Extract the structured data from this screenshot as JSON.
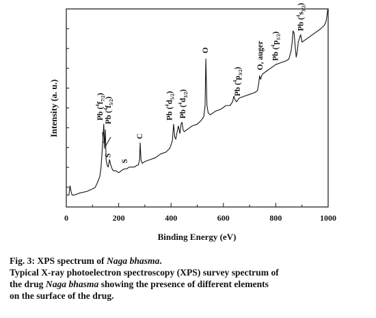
{
  "chart_data": {
    "type": "line",
    "title": "",
    "xlabel": "Binding Energy (eV)",
    "ylabel": "Intensity (a. u.)",
    "xlim": [
      0,
      1000
    ],
    "x_ticks": [
      "0",
      "200",
      "400",
      "600",
      "800",
      "1000"
    ],
    "y_ticks_labeled": false,
    "grid": false,
    "legend": "none",
    "series": [
      {
        "x": [
          2,
          10,
          14,
          18,
          22,
          30,
          50,
          80,
          110,
          120,
          128,
          132,
          136,
          140,
          143,
          146,
          149,
          152,
          156,
          160,
          165,
          170,
          175,
          180,
          190,
          200,
          210,
          220,
          230,
          240,
          250,
          260,
          270,
          275,
          280,
          282,
          285,
          290,
          300,
          320,
          340,
          360,
          380,
          395,
          405,
          410,
          414,
          418,
          422,
          428,
          434,
          438,
          442,
          446,
          450,
          460,
          480,
          500,
          515,
          525,
          530,
          533,
          537,
          542,
          550,
          570,
          590,
          610,
          625,
          635,
          640,
          645,
          650,
          660,
          680,
          700,
          720,
          730,
          735,
          738,
          742,
          746,
          750,
          760,
          780,
          800,
          820,
          840,
          850,
          858,
          862,
          866,
          870,
          874,
          878,
          882,
          886,
          890,
          895,
          900,
          910,
          930,
          950,
          970,
          985,
          992,
          996,
          999
        ],
        "y": [
          0.02,
          0.02,
          0.07,
          0.04,
          0.02,
          0.02,
          0.03,
          0.04,
          0.06,
          0.09,
          0.12,
          0.16,
          0.24,
          0.32,
          0.4,
          0.27,
          0.37,
          0.21,
          0.18,
          0.17,
          0.21,
          0.18,
          0.16,
          0.15,
          0.15,
          0.14,
          0.15,
          0.16,
          0.16,
          0.17,
          0.17,
          0.17,
          0.18,
          0.18,
          0.21,
          0.3,
          0.21,
          0.19,
          0.2,
          0.21,
          0.22,
          0.24,
          0.25,
          0.27,
          0.31,
          0.4,
          0.33,
          0.32,
          0.35,
          0.39,
          0.35,
          0.4,
          0.41,
          0.37,
          0.36,
          0.37,
          0.39,
          0.4,
          0.42,
          0.44,
          0.5,
          0.75,
          0.5,
          0.46,
          0.45,
          0.47,
          0.48,
          0.5,
          0.5,
          0.52,
          0.55,
          0.53,
          0.52,
          0.54,
          0.55,
          0.56,
          0.57,
          0.58,
          0.62,
          0.66,
          0.64,
          0.66,
          0.67,
          0.68,
          0.7,
          0.72,
          0.73,
          0.74,
          0.75,
          0.79,
          0.83,
          0.9,
          0.89,
          0.82,
          0.76,
          0.79,
          0.84,
          0.86,
          0.88,
          0.84,
          0.85,
          0.87,
          0.89,
          0.91,
          0.93,
          0.95,
          0.99,
          1.02
        ]
      }
    ],
    "annotations": [
      {
        "base": "Pb (",
        "sup": "4",
        "letter": "f",
        "sub": "7/2",
        "end": ")",
        "x": 138,
        "y": 0.42
      },
      {
        "base": "Pb (",
        "sup": "4",
        "letter": "f",
        "sub": "5/2",
        "end": ")",
        "x": 170,
        "y": 0.4
      },
      {
        "base": "S",
        "x": 168,
        "y": 0.22
      },
      {
        "base": "S",
        "x": 232,
        "y": 0.19
      },
      {
        "base": "C",
        "x": 290,
        "y": 0.32
      },
      {
        "base": "Pb (",
        "sup": "4",
        "letter": "d",
        "sub": "5/2",
        "end": ")",
        "x": 404,
        "y": 0.42
      },
      {
        "base": "Pb (",
        "sup": "4",
        "letter": "d",
        "sub": "3/2",
        "end": ")",
        "x": 454,
        "y": 0.43
      },
      {
        "base": "O",
        "x": 541,
        "y": 0.78
      },
      {
        "base": "Pb (",
        "sup": "4",
        "letter": "p",
        "sub": "3/2",
        "end": ")",
        "x": 663,
        "y": 0.55
      },
      {
        "base": "O, auger",
        "x": 749,
        "y": 0.69
      },
      {
        "base": "Pb (",
        "sup": "4",
        "letter": "p",
        "sub": "1/2",
        "end": ")",
        "x": 808,
        "y": 0.74
      },
      {
        "base": "Pb (",
        "sup": "4",
        "letter": "s",
        "sub": "3/2",
        "end": ")",
        "x": 905,
        "y": 0.9
      }
    ]
  },
  "caption": {
    "fig_label": "Fig. 3: XPS spectrum of ",
    "fig_name": "Naga bhasma",
    "fig_end": ".",
    "desc_line1": "Typical X-ray photoelectron spectroscopy (XPS) survey spectrum of",
    "desc_line2_a": "the drug ",
    "desc_line2_name": "Naga bhasma",
    "desc_line2_b": " showing the presence of different elements",
    "desc_line3": "on the surface of the drug."
  }
}
